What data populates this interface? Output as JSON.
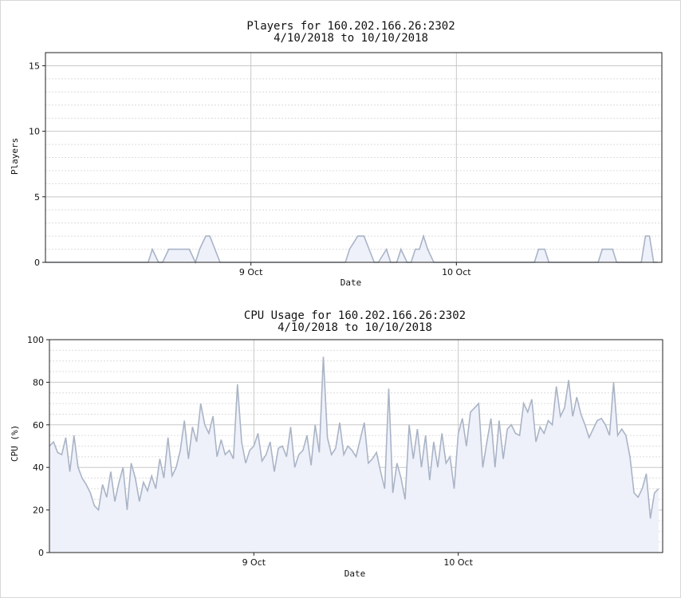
{
  "chart_data": [
    {
      "type": "area",
      "title": "Players for 160.202.166.26:2302",
      "subtitle": "4/10/2018 to 10/10/2018",
      "xlabel": "Date",
      "ylabel": "Players",
      "ylim": [
        0,
        16
      ],
      "yticks": [
        0,
        5,
        10,
        15
      ],
      "xticks": [
        "9 Oct",
        "10 Oct"
      ],
      "x": [
        0.0,
        0.5,
        0.52,
        0.55,
        0.57,
        0.6,
        0.63,
        0.7,
        0.73,
        0.75,
        0.78,
        0.8,
        0.85,
        0.88,
        1.46,
        1.48,
        1.52,
        1.55,
        1.6,
        1.62,
        1.66,
        1.68,
        1.71,
        1.73,
        1.76,
        1.78,
        1.8,
        1.82,
        1.84,
        1.86,
        1.89,
        1.91,
        1.94,
        1.96,
        2.38,
        2.4,
        2.43,
        2.45,
        2.69,
        2.71,
        2.76,
        2.78,
        2.9,
        2.92,
        2.94,
        2.96,
        2.98
      ],
      "series": [
        {
          "values": [
            0,
            0,
            1,
            0,
            0,
            1,
            1,
            1,
            0,
            1,
            2,
            2,
            0,
            0,
            0,
            1,
            2,
            2,
            0,
            0,
            1,
            0,
            0,
            1,
            0,
            0,
            1,
            1,
            2,
            1,
            0,
            0,
            0,
            0,
            0,
            1,
            1,
            0,
            0,
            1,
            1,
            0,
            0,
            2,
            2,
            0,
            0
          ],
          "line_color": "#aab4c6",
          "fill_color": "#eef1fa"
        }
      ],
      "grid": true
    },
    {
      "type": "area",
      "title": "CPU Usage for 160.202.166.26:2302",
      "subtitle": "4/10/2018 to 10/10/2018",
      "xlabel": "Date",
      "ylabel": "CPU (%)",
      "ylim": [
        0,
        100
      ],
      "yticks": [
        0,
        20,
        40,
        60,
        80,
        100
      ],
      "xticks": [
        "9 Oct",
        "10 Oct"
      ],
      "x": [
        0.0,
        0.02,
        0.04,
        0.06,
        0.08,
        0.1,
        0.12,
        0.14,
        0.16,
        0.18,
        0.2,
        0.22,
        0.24,
        0.26,
        0.28,
        0.3,
        0.32,
        0.34,
        0.36,
        0.38,
        0.4,
        0.42,
        0.44,
        0.46,
        0.48,
        0.5,
        0.52,
        0.54,
        0.56,
        0.58,
        0.6,
        0.62,
        0.64,
        0.66,
        0.68,
        0.7,
        0.72,
        0.74,
        0.76,
        0.78,
        0.8,
        0.82,
        0.84,
        0.86,
        0.88,
        0.9,
        0.92,
        0.94,
        0.96,
        0.98,
        1.0,
        1.02,
        1.04,
        1.06,
        1.08,
        1.1,
        1.12,
        1.14,
        1.16,
        1.18,
        1.2,
        1.22,
        1.24,
        1.26,
        1.28,
        1.3,
        1.32,
        1.34,
        1.36,
        1.38,
        1.4,
        1.42,
        1.44,
        1.46,
        1.48,
        1.5,
        1.52,
        1.54,
        1.56,
        1.58,
        1.6,
        1.62,
        1.64,
        1.66,
        1.68,
        1.7,
        1.72,
        1.74,
        1.76,
        1.78,
        1.8,
        1.82,
        1.84,
        1.86,
        1.88,
        1.9,
        1.92,
        1.94,
        1.96,
        1.98,
        2.0,
        2.02,
        2.04,
        2.06,
        2.08,
        2.1,
        2.12,
        2.14,
        2.16,
        2.18,
        2.2,
        2.22,
        2.24,
        2.26,
        2.28,
        2.3,
        2.32,
        2.34,
        2.36,
        2.38,
        2.4,
        2.42,
        2.44,
        2.46,
        2.48,
        2.5,
        2.52,
        2.54,
        2.56,
        2.58,
        2.6,
        2.62,
        2.64,
        2.66,
        2.68,
        2.7,
        2.72,
        2.74,
        2.76,
        2.78,
        2.8,
        2.82,
        2.84,
        2.86,
        2.88,
        2.9,
        2.92,
        2.94,
        2.96,
        2.98
      ],
      "series": [
        {
          "values": [
            50,
            52,
            47,
            46,
            54,
            38,
            55,
            40,
            35,
            32,
            28,
            22,
            20,
            32,
            26,
            38,
            24,
            33,
            40,
            20,
            42,
            35,
            24,
            33,
            29,
            36,
            30,
            44,
            35,
            54,
            36,
            40,
            48,
            62,
            44,
            59,
            52,
            70,
            60,
            56,
            64,
            45,
            53,
            46,
            48,
            44,
            79,
            52,
            42,
            48,
            50,
            56,
            43,
            46,
            52,
            38,
            49,
            50,
            45,
            59,
            40,
            46,
            48,
            55,
            41,
            60,
            47,
            92,
            54,
            46,
            49,
            61,
            46,
            50,
            48,
            45,
            53,
            61,
            42,
            44,
            47,
            38,
            30,
            77,
            28,
            42,
            35,
            25,
            60,
            44,
            58,
            40,
            55,
            34,
            52,
            40,
            56,
            42,
            45,
            30,
            56,
            63,
            50,
            66,
            68,
            70,
            40,
            52,
            63,
            40,
            62,
            44,
            58,
            60,
            56,
            55,
            70,
            66,
            72,
            52,
            59,
            56,
            62,
            60,
            78,
            64,
            68,
            81,
            64,
            73,
            65,
            60,
            54,
            58,
            62,
            63,
            60,
            55,
            80,
            55,
            58,
            55,
            45,
            28,
            26,
            30,
            37,
            16,
            28,
            30
          ],
          "line_color": "#aab4c6",
          "fill_color": "#eef1fa"
        }
      ],
      "grid": true
    }
  ]
}
